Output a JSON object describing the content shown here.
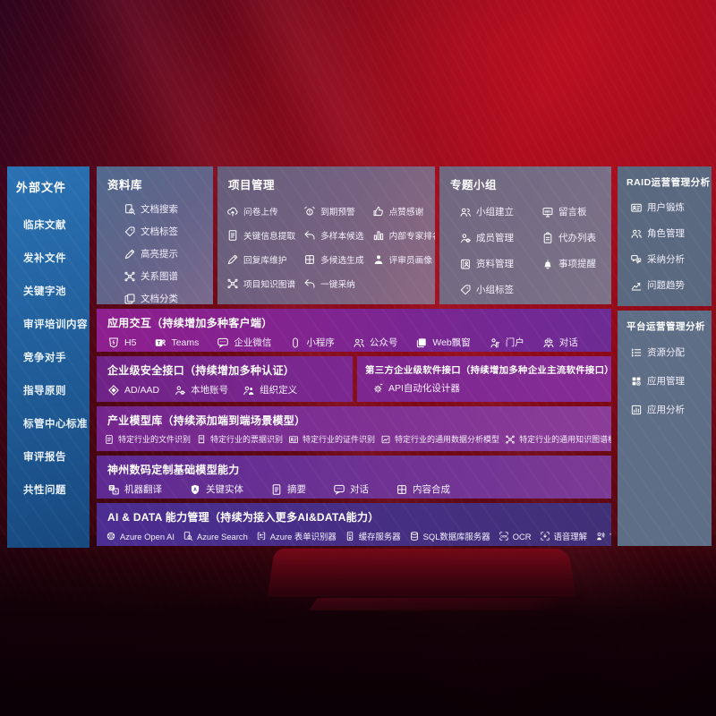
{
  "palette": {
    "bg_bright": "#bf1021",
    "bg_dark": "#33040c",
    "sidebar_top": "#2a72b4",
    "sidebar_bottom": "#17497f",
    "panel_ziliao_a": "#51688c",
    "panel_ziliao_b": "#7b6a8c",
    "panel_xiangmu_a": "#655e7b",
    "panel_xiangmu_b": "#8d6a82",
    "panel_zhuanti_a": "#6e6880",
    "panel_zhuanti_b": "#7d7288",
    "panel_raid": "#5a6980",
    "panel_pingtai": "#5e6e86",
    "row_app_a": "#8e1f8e",
    "row_app_b": "#6d2b94",
    "row_sec_a": "#702386",
    "row_sec_b": "#7b2990",
    "row_third_a": "#7d2690",
    "row_third_b": "#862d95",
    "row_industry_a": "#73258d",
    "row_industry_b": "#8a3d98",
    "row_digital_a": "#5e2a92",
    "row_digital_b": "#7b3a94",
    "row_aidata_a": "#4c2d92",
    "row_aidata_b": "#403077"
  },
  "sidebar": {
    "title": "外部文件",
    "items": [
      {
        "label": "临床文献"
      },
      {
        "label": "发补文件"
      },
      {
        "label": "关键字池"
      },
      {
        "label": "审评培训内容"
      },
      {
        "label": "竞争对手"
      },
      {
        "label": "指导原则"
      },
      {
        "label": "标管中心标准"
      },
      {
        "label": "审评报告"
      },
      {
        "label": "共性问题"
      }
    ]
  },
  "top_panels": [
    {
      "id": "ziliao",
      "title": "资料库",
      "items": [
        {
          "icon": "doc-search-icon",
          "label": "文档搜索"
        },
        {
          "icon": "doc-tag-icon",
          "label": "文档标签"
        },
        {
          "icon": "highlight-pen-icon",
          "label": "高亮提示"
        },
        {
          "icon": "relation-graph-icon",
          "label": "关系图谱"
        },
        {
          "icon": "doc-classify-icon",
          "label": "文档分类"
        }
      ]
    },
    {
      "id": "xiangmu",
      "title": "项目管理",
      "items": [
        {
          "icon": "cloud-upload-icon",
          "label": "问卷上传"
        },
        {
          "icon": "alarm-warning-icon",
          "label": "到期预警"
        },
        {
          "icon": "thumbs-up-icon",
          "label": "点赞感谢"
        },
        {
          "icon": "key-info-extract-icon",
          "label": "关键信息提取"
        },
        {
          "icon": "multi-sample-icon",
          "label": "多样本候选"
        },
        {
          "icon": "expert-ranking-icon",
          "label": "内部专家排名"
        },
        {
          "icon": "reply-maintain-icon",
          "label": "回复库维护"
        },
        {
          "icon": "multi-generate-icon",
          "label": "多候选生成"
        },
        {
          "icon": "reviewer-profile-icon",
          "label": "评审员画像"
        },
        {
          "icon": "project-graph-icon",
          "label": "项目知识图谱"
        },
        {
          "icon": "one-click-adopt-icon",
          "label": "一键采纳"
        }
      ]
    },
    {
      "id": "zhuanti",
      "title": "专题小组",
      "items": [
        {
          "icon": "group-create-icon",
          "label": "小组建立"
        },
        {
          "icon": "message-board-icon",
          "label": "留言板"
        },
        {
          "icon": "member-manage-icon",
          "label": "成员管理"
        },
        {
          "icon": "todo-list-icon",
          "label": "代办列表"
        },
        {
          "icon": "material-manage-icon",
          "label": "资料管理"
        },
        {
          "icon": "reminder-icon",
          "label": "事项提醒"
        },
        {
          "icon": "group-tag-icon",
          "label": "小组标签"
        }
      ]
    }
  ],
  "right_panels": [
    {
      "id": "raid",
      "title": "RAID运营管理分析",
      "items": [
        {
          "icon": "user-card-icon",
          "label": "用户锻炼"
        },
        {
          "icon": "role-manage-icon",
          "label": "角色管理"
        },
        {
          "icon": "adopt-analysis-icon",
          "label": "采纳分析"
        },
        {
          "icon": "issue-trend-icon",
          "label": "问题趋势"
        }
      ]
    },
    {
      "id": "pingtai",
      "title": "平台运营管理分析",
      "items": [
        {
          "icon": "resource-alloc-icon",
          "label": "资源分配"
        },
        {
          "icon": "app-manage-icon",
          "label": "应用管理"
        },
        {
          "icon": "app-analysis-icon",
          "label": "应用分析"
        }
      ]
    }
  ],
  "rows": [
    {
      "id": "app",
      "title": "应用交互（持续增加多种客户端）",
      "items": [
        {
          "icon": "h5-icon",
          "label": "H5"
        },
        {
          "icon": "teams-icon",
          "label": "Teams"
        },
        {
          "icon": "wechat-work-icon",
          "label": "企业微信"
        },
        {
          "icon": "miniprogram-icon",
          "label": "小程序"
        },
        {
          "icon": "official-account-icon",
          "label": "公众号"
        },
        {
          "icon": "web-window-icon",
          "label": "Web飘窗"
        },
        {
          "icon": "portal-icon",
          "label": "门户"
        },
        {
          "icon": "dialog-icon",
          "label": "对话"
        }
      ]
    },
    {
      "id": "sec",
      "title": "企业级安全接口（持续增加多种认证）",
      "items": [
        {
          "icon": "ad-aad-icon",
          "label": "AD/AAD"
        },
        {
          "icon": "local-account-icon",
          "label": "本地账号"
        },
        {
          "icon": "org-define-icon",
          "label": "组织定义"
        }
      ]
    },
    {
      "id": "third",
      "title": "第三方企业级软件接口（持续增加多种企业主流软件接口）",
      "items": [
        {
          "icon": "api-designer-icon",
          "label": "API自动化设计器"
        }
      ]
    },
    {
      "id": "industry",
      "title": "产业模型库（持续添加端到端场景模型）",
      "items": [
        {
          "icon": "file-recognize-icon",
          "label": "特定行业的文件识别"
        },
        {
          "icon": "receipt-recognize-icon",
          "label": "特定行业的票据识别"
        },
        {
          "icon": "id-recognize-icon",
          "label": "特定行业的证件识别"
        },
        {
          "icon": "data-analysis-model-icon",
          "label": "特定行业的通用数据分析模型"
        },
        {
          "icon": "knowledge-graph-model-icon",
          "label": "特定行业的通用知识图谱模型"
        }
      ]
    },
    {
      "id": "digital",
      "title": "神州数码定制基础模型能力",
      "items": [
        {
          "icon": "machine-translate-icon",
          "label": "机器翻译"
        },
        {
          "icon": "key-entity-icon",
          "label": "关键实体"
        },
        {
          "icon": "summary-icon",
          "label": "摘要"
        },
        {
          "icon": "chat-icon",
          "label": "对话"
        },
        {
          "icon": "content-compose-icon",
          "label": "内容合成"
        }
      ]
    },
    {
      "id": "aidata",
      "title": "AI & DATA 能力管理（持续为接入更多AI&DATA能力）",
      "items": [
        {
          "icon": "azure-openai-icon",
          "label": "Azure Open AI"
        },
        {
          "icon": "azure-search-icon",
          "label": "Azure Search"
        },
        {
          "icon": "azure-form-recognizer-icon",
          "label": "Azure 表单识别器"
        },
        {
          "icon": "cache-server-icon",
          "label": "缓存服务器"
        },
        {
          "icon": "sql-database-icon",
          "label": "SQL数据库服务器"
        },
        {
          "icon": "ocr-icon",
          "label": "OCR"
        },
        {
          "icon": "speech-understand-icon",
          "label": "语音理解"
        },
        {
          "icon": "tts-icon",
          "label": "TTS"
        }
      ]
    }
  ]
}
